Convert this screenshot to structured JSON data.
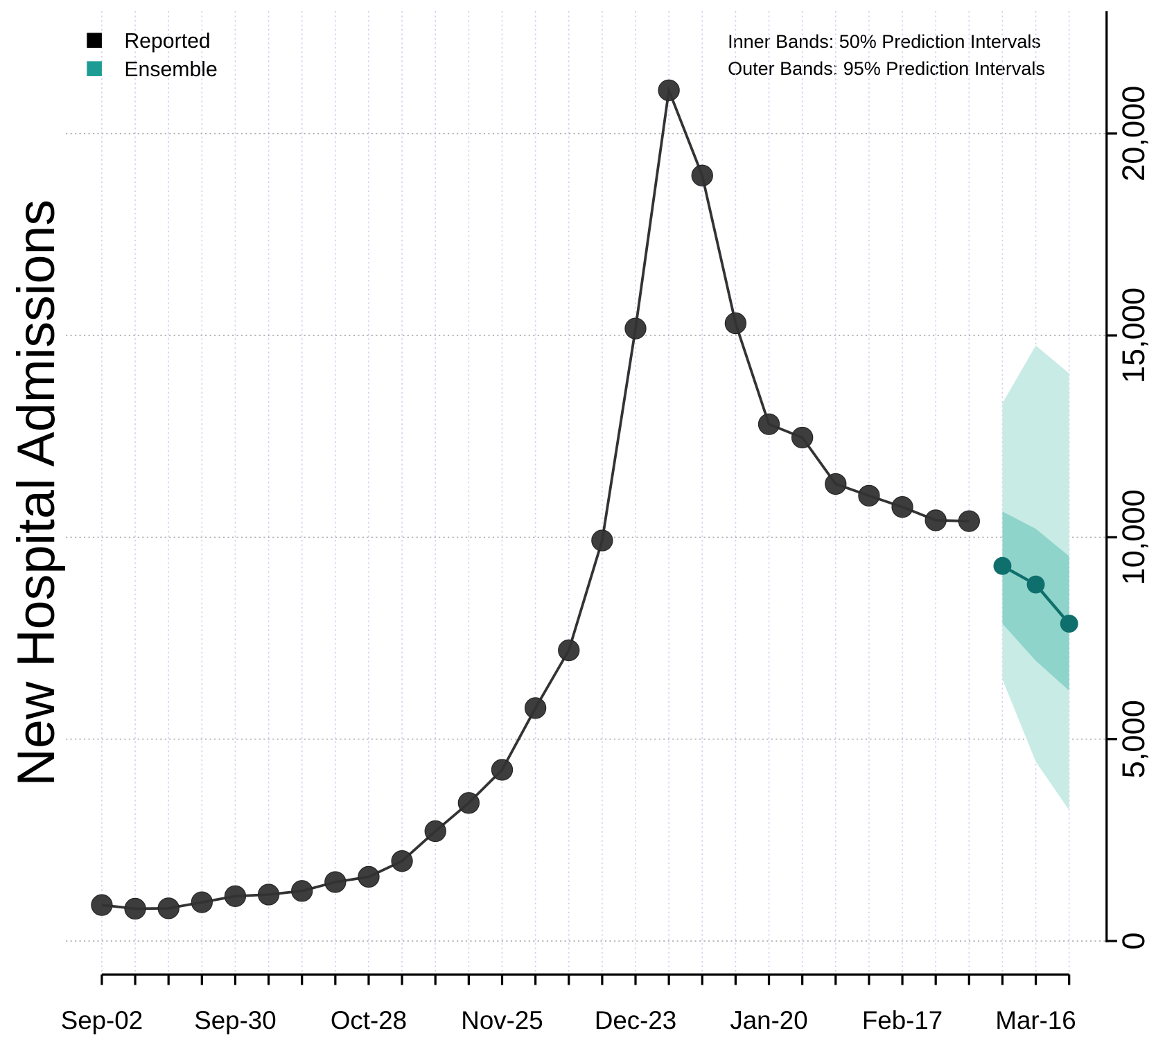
{
  "chart_data": {
    "type": "line",
    "y_label": "New Hospital Admissions",
    "annotations": [
      "Inner Bands: 50% Prediction Intervals",
      "Outer Bands: 95% Prediction Intervals"
    ],
    "categories": [
      "Sep-02",
      null,
      null,
      null,
      "Sep-30",
      null,
      null,
      null,
      "Oct-28",
      null,
      null,
      null,
      "Nov-25",
      null,
      null,
      null,
      "Dec-23",
      null,
      null,
      null,
      "Jan-20",
      null,
      null,
      null,
      "Feb-17",
      null,
      null,
      null,
      "Mar-16",
      null
    ],
    "series": [
      {
        "name": "Reported",
        "color": "#333333",
        "values": [
          890,
          800,
          810,
          960,
          1110,
          1150,
          1240,
          1460,
          1590,
          1980,
          2720,
          3420,
          4240,
          5770,
          7200,
          9920,
          15170,
          21070,
          18960,
          15300,
          12800,
          12470,
          11320,
          11030,
          10750,
          10420,
          10400,
          null,
          null,
          null
        ]
      },
      {
        "name": "Ensemble",
        "color": "#1d9c94",
        "values": [
          null,
          null,
          null,
          null,
          null,
          null,
          null,
          null,
          null,
          null,
          null,
          null,
          null,
          null,
          null,
          null,
          null,
          null,
          null,
          null,
          null,
          null,
          null,
          null,
          null,
          null,
          null,
          9290,
          8830,
          7860
        ]
      }
    ],
    "bands": [
      {
        "color": "#c8ebe6",
        "lower": [
          null,
          null,
          null,
          null,
          null,
          null,
          null,
          null,
          null,
          null,
          null,
          null,
          null,
          null,
          null,
          null,
          null,
          null,
          null,
          null,
          null,
          null,
          null,
          null,
          null,
          null,
          null,
          6480,
          4440,
          3240
        ],
        "upper": [
          null,
          null,
          null,
          null,
          null,
          null,
          null,
          null,
          null,
          null,
          null,
          null,
          null,
          null,
          null,
          null,
          null,
          null,
          null,
          null,
          null,
          null,
          null,
          null,
          null,
          null,
          null,
          13320,
          14750,
          14060
        ]
      },
      {
        "color": "#8ed4ca",
        "lower": [
          null,
          null,
          null,
          null,
          null,
          null,
          null,
          null,
          null,
          null,
          null,
          null,
          null,
          null,
          null,
          null,
          null,
          null,
          null,
          null,
          null,
          null,
          null,
          null,
          null,
          null,
          null,
          7860,
          6940,
          6200
        ],
        "upper": [
          null,
          null,
          null,
          null,
          null,
          null,
          null,
          null,
          null,
          null,
          null,
          null,
          null,
          null,
          null,
          null,
          null,
          null,
          null,
          null,
          null,
          null,
          null,
          null,
          null,
          null,
          null,
          10640,
          10210,
          9530
        ]
      }
    ],
    "ylim": [
      -830,
      23030
    ],
    "yticks": [
      0,
      {
        "value": 5000,
        "label": "5,000"
      },
      {
        "value": 10000,
        "label": "10,000"
      },
      {
        "value": 15000,
        "label": "15,000"
      },
      {
        "value": 20000,
        "label": "20,000"
      }
    ],
    "grid": true,
    "legend": "top-left"
  }
}
